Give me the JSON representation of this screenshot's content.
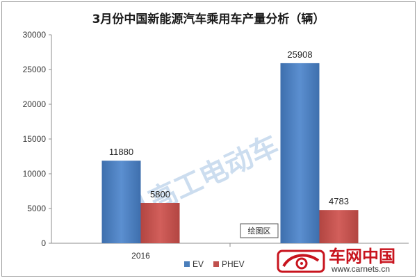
{
  "chart_data": {
    "type": "bar",
    "title": "3月份中国新能源汽车乘用车产量分析（辆）",
    "categories": [
      "2016",
      ""
    ],
    "series": [
      {
        "name": "EV",
        "color": "#4a7ebb",
        "values": [
          11880,
          25908
        ]
      },
      {
        "name": "PHEV",
        "color": "#c0504d",
        "values": [
          5800,
          4783
        ]
      }
    ],
    "ylim": [
      0,
      30000
    ],
    "yticks": [
      "0",
      "5000",
      "10000",
      "15000",
      "20000",
      "25000",
      "30000"
    ],
    "grid": false,
    "legend": "bottom-center",
    "data_labels": true
  },
  "watermark": {
    "text": "高工电动车",
    "badge": "G"
  },
  "brand": {
    "name": "车网中国",
    "url": "www.carnets.cn"
  },
  "tooltip": {
    "text": "绘图区"
  }
}
